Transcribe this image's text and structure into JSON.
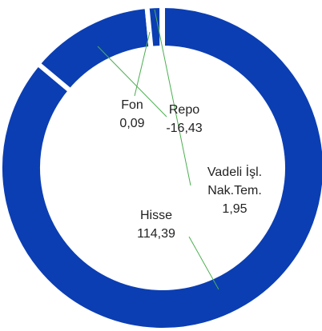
{
  "chart_data": {
    "type": "pie",
    "categories": [
      "Hisse",
      "Repo",
      "Vadeli İşl. Nak.Tem.",
      "Fon"
    ],
    "values": [
      114.39,
      -16.43,
      1.95,
      0.09
    ],
    "value_labels": [
      "114,39",
      "-16,43",
      "1,95",
      "0,09"
    ],
    "color": "#0b3eb3"
  }
}
